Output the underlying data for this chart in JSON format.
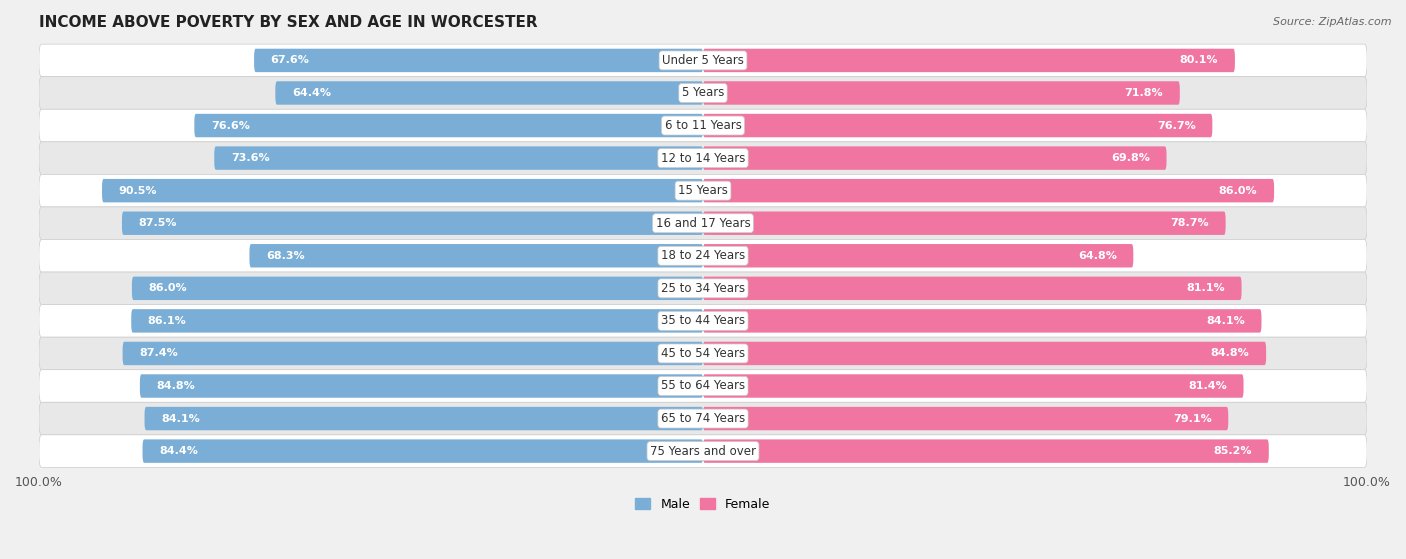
{
  "title": "INCOME ABOVE POVERTY BY SEX AND AGE IN WORCESTER",
  "source": "Source: ZipAtlas.com",
  "categories": [
    "Under 5 Years",
    "5 Years",
    "6 to 11 Years",
    "12 to 14 Years",
    "15 Years",
    "16 and 17 Years",
    "18 to 24 Years",
    "25 to 34 Years",
    "35 to 44 Years",
    "45 to 54 Years",
    "55 to 64 Years",
    "65 to 74 Years",
    "75 Years and over"
  ],
  "male_values": [
    67.6,
    64.4,
    76.6,
    73.6,
    90.5,
    87.5,
    68.3,
    86.0,
    86.1,
    87.4,
    84.8,
    84.1,
    84.4
  ],
  "female_values": [
    80.1,
    71.8,
    76.7,
    69.8,
    86.0,
    78.7,
    64.8,
    81.1,
    84.1,
    84.8,
    81.4,
    79.1,
    85.2
  ],
  "male_color": "#7aaed6",
  "female_color": "#f075a0",
  "male_light_color": "#aecde8",
  "female_light_color": "#f9afc8",
  "bg_color": "#f0f0f0",
  "row_white": "#ffffff",
  "row_gray": "#e8e8e8",
  "max_val": 100.0,
  "title_fontsize": 11,
  "label_fontsize": 8.5,
  "value_fontsize": 8,
  "legend_fontsize": 9,
  "axis_fontsize": 9
}
